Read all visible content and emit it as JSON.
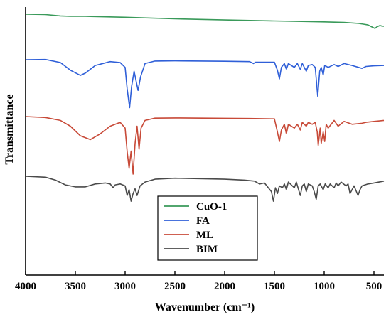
{
  "chart_data": {
    "type": "line",
    "title": "",
    "xlabel": "Wavenumber (cm⁻¹)",
    "ylabel": "Transmittance",
    "xlim": [
      4000,
      400
    ],
    "x_reversed": true,
    "x_ticks": [
      4000,
      3500,
      3000,
      2500,
      2000,
      1500,
      1000,
      500
    ],
    "y_ticks_shown": false,
    "grid": false,
    "legend_position": "bottom-center",
    "legend": [
      "CuO-1",
      "FA",
      "ML",
      "BIM"
    ],
    "series": [
      {
        "name": "CuO-1",
        "color": "#3a9a5a",
        "points": [
          [
            4000,
            0.0
          ],
          [
            3800,
            -0.2
          ],
          [
            3650,
            -0.9
          ],
          [
            3550,
            -1.1
          ],
          [
            3400,
            -1.1
          ],
          [
            3000,
            -1.6
          ],
          [
            2500,
            -2.4
          ],
          [
            2000,
            -3.0
          ],
          [
            1500,
            -3.5
          ],
          [
            1000,
            -4.0
          ],
          [
            800,
            -4.3
          ],
          [
            650,
            -4.8
          ],
          [
            560,
            -5.6
          ],
          [
            510,
            -6.9
          ],
          [
            490,
            -7.4
          ],
          [
            470,
            -6.6
          ],
          [
            440,
            -5.9
          ],
          [
            420,
            -6.2
          ],
          [
            400,
            -6.3
          ]
        ]
      },
      {
        "name": "FA",
        "color": "#2f5fd8",
        "points": [
          [
            4000,
            0.0
          ],
          [
            3800,
            0.1
          ],
          [
            3650,
            -1.5
          ],
          [
            3550,
            -5.5
          ],
          [
            3450,
            -8.2
          ],
          [
            3400,
            -7.0
          ],
          [
            3300,
            -3.0
          ],
          [
            3150,
            -1.0
          ],
          [
            3050,
            -1.5
          ],
          [
            3000,
            -4.0
          ],
          [
            2980,
            -15.0
          ],
          [
            2955,
            -25.0
          ],
          [
            2935,
            -14.0
          ],
          [
            2910,
            -6.0
          ],
          [
            2870,
            -16.0
          ],
          [
            2845,
            -9.0
          ],
          [
            2800,
            -2.0
          ],
          [
            2700,
            -0.7
          ],
          [
            2500,
            -0.6
          ],
          [
            2000,
            -0.8
          ],
          [
            1750,
            -1.0
          ],
          [
            1710,
            -2.0
          ],
          [
            1690,
            -1.3
          ],
          [
            1500,
            -1.3
          ],
          [
            1470,
            -5.5
          ],
          [
            1450,
            -10.0
          ],
          [
            1430,
            -4.0
          ],
          [
            1400,
            -2.0
          ],
          [
            1380,
            -5.0
          ],
          [
            1360,
            -2.0
          ],
          [
            1300,
            -4.0
          ],
          [
            1270,
            -2.0
          ],
          [
            1240,
            -5.0
          ],
          [
            1220,
            -2.0
          ],
          [
            1180,
            -6.0
          ],
          [
            1160,
            -3.0
          ],
          [
            1120,
            -2.5
          ],
          [
            1090,
            -4.0
          ],
          [
            1065,
            -19.0
          ],
          [
            1045,
            -6.0
          ],
          [
            1030,
            -4.0
          ],
          [
            1010,
            -8.0
          ],
          [
            995,
            -3.0
          ],
          [
            960,
            -4.0
          ],
          [
            900,
            -2.5
          ],
          [
            860,
            -3.5
          ],
          [
            800,
            -2.0
          ],
          [
            720,
            -3.0
          ],
          [
            620,
            -4.5
          ],
          [
            580,
            -3.5
          ],
          [
            500,
            -3.2
          ],
          [
            400,
            -3.0
          ]
        ]
      },
      {
        "name": "ML",
        "color": "#c84a38",
        "points": [
          [
            4000,
            0.0
          ],
          [
            3800,
            -0.5
          ],
          [
            3650,
            -2.0
          ],
          [
            3550,
            -5.0
          ],
          [
            3450,
            -10.0
          ],
          [
            3350,
            -12.0
          ],
          [
            3250,
            -9.0
          ],
          [
            3150,
            -5.0
          ],
          [
            3050,
            -3.0
          ],
          [
            3000,
            -6.0
          ],
          [
            2980,
            -18.0
          ],
          [
            2960,
            -27.0
          ],
          [
            2940,
            -18.0
          ],
          [
            2920,
            -30.0
          ],
          [
            2900,
            -14.0
          ],
          [
            2880,
            -5.0
          ],
          [
            2860,
            -17.0
          ],
          [
            2840,
            -6.0
          ],
          [
            2800,
            -2.0
          ],
          [
            2700,
            -0.8
          ],
          [
            2500,
            -0.7
          ],
          [
            2000,
            -0.9
          ],
          [
            1750,
            -1.0
          ],
          [
            1500,
            -1.2
          ],
          [
            1470,
            -8.0
          ],
          [
            1450,
            -13.0
          ],
          [
            1430,
            -7.0
          ],
          [
            1400,
            -4.0
          ],
          [
            1380,
            -9.0
          ],
          [
            1360,
            -4.0
          ],
          [
            1300,
            -6.0
          ],
          [
            1270,
            -4.0
          ],
          [
            1240,
            -7.0
          ],
          [
            1220,
            -3.0
          ],
          [
            1180,
            -5.0
          ],
          [
            1160,
            -3.0
          ],
          [
            1120,
            -4.0
          ],
          [
            1090,
            -3.0
          ],
          [
            1070,
            -8.0
          ],
          [
            1060,
            -15.0
          ],
          [
            1040,
            -6.0
          ],
          [
            1030,
            -14.0
          ],
          [
            1010,
            -8.0
          ],
          [
            995,
            -13.0
          ],
          [
            980,
            -4.0
          ],
          [
            960,
            -6.0
          ],
          [
            900,
            -2.0
          ],
          [
            860,
            -5.0
          ],
          [
            800,
            -2.5
          ],
          [
            720,
            -4.0
          ],
          [
            620,
            -3.5
          ],
          [
            580,
            -3.0
          ],
          [
            500,
            -2.5
          ],
          [
            400,
            -2.0
          ]
        ]
      },
      {
        "name": "BIM",
        "color": "#4a4a4a",
        "points": [
          [
            4000,
            0.0
          ],
          [
            3800,
            -0.5
          ],
          [
            3700,
            -2.0
          ],
          [
            3600,
            -4.5
          ],
          [
            3500,
            -5.5
          ],
          [
            3400,
            -5.5
          ],
          [
            3300,
            -4.0
          ],
          [
            3200,
            -3.5
          ],
          [
            3150,
            -4.0
          ],
          [
            3120,
            -6.0
          ],
          [
            3100,
            -4.5
          ],
          [
            3050,
            -4.0
          ],
          [
            3000,
            -5.0
          ],
          [
            2980,
            -10.0
          ],
          [
            2960,
            -7.0
          ],
          [
            2940,
            -13.0
          ],
          [
            2920,
            -9.0
          ],
          [
            2900,
            -6.5
          ],
          [
            2880,
            -10.0
          ],
          [
            2850,
            -5.0
          ],
          [
            2800,
            -3.0
          ],
          [
            2700,
            -1.5
          ],
          [
            2500,
            -1.0
          ],
          [
            2000,
            -1.5
          ],
          [
            1800,
            -2.0
          ],
          [
            1700,
            -2.5
          ],
          [
            1650,
            -4.0
          ],
          [
            1600,
            -3.5
          ],
          [
            1530,
            -8.0
          ],
          [
            1510,
            -13.0
          ],
          [
            1490,
            -6.0
          ],
          [
            1470,
            -9.0
          ],
          [
            1450,
            -5.0
          ],
          [
            1420,
            -6.0
          ],
          [
            1400,
            -4.0
          ],
          [
            1380,
            -7.0
          ],
          [
            1360,
            -3.0
          ],
          [
            1300,
            -6.0
          ],
          [
            1280,
            -3.0
          ],
          [
            1240,
            -10.0
          ],
          [
            1220,
            -5.0
          ],
          [
            1200,
            -4.0
          ],
          [
            1180,
            -8.0
          ],
          [
            1160,
            -4.0
          ],
          [
            1120,
            -5.0
          ],
          [
            1100,
            -8.0
          ],
          [
            1080,
            -12.0
          ],
          [
            1060,
            -5.0
          ],
          [
            1040,
            -4.0
          ],
          [
            1010,
            -7.0
          ],
          [
            990,
            -4.0
          ],
          [
            960,
            -6.0
          ],
          [
            940,
            -4.0
          ],
          [
            900,
            -6.0
          ],
          [
            880,
            -3.5
          ],
          [
            860,
            -5.0
          ],
          [
            830,
            -3.0
          ],
          [
            780,
            -5.0
          ],
          [
            760,
            -4.0
          ],
          [
            740,
            -9.0
          ],
          [
            720,
            -7.0
          ],
          [
            700,
            -5.0
          ],
          [
            660,
            -10.0
          ],
          [
            640,
            -7.0
          ],
          [
            620,
            -5.0
          ],
          [
            560,
            -4.0
          ],
          [
            500,
            -3.5
          ],
          [
            400,
            -2.5
          ]
        ]
      }
    ]
  }
}
